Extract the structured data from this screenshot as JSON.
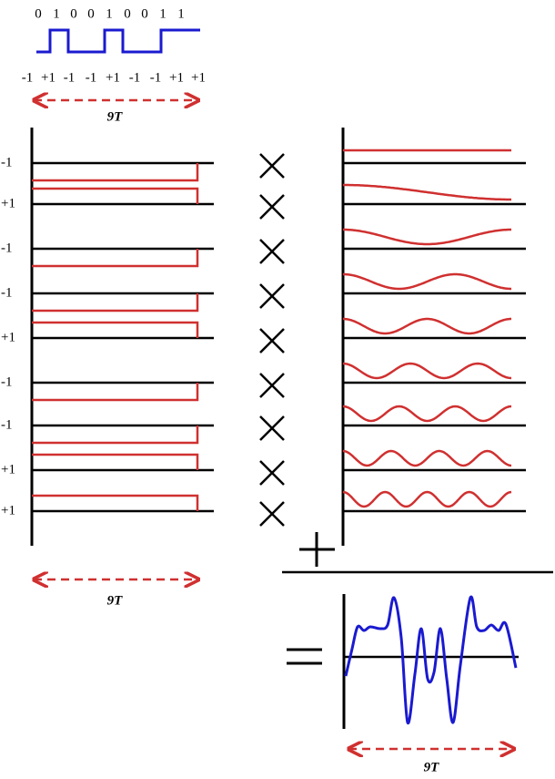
{
  "bits": [
    "0",
    "1",
    "0",
    "0",
    "1",
    "0",
    "0",
    "1",
    "1"
  ],
  "symbols": [
    "-1",
    "+1",
    "-1",
    "-1",
    "+1",
    "-1",
    "-1",
    "+1",
    "+1"
  ],
  "rows": [
    "-1",
    "+1",
    "-1",
    "-1",
    "+1",
    "-1",
    "-1",
    "+1",
    "+1"
  ],
  "durations": [
    "9T",
    "9T",
    "9T"
  ]
}
